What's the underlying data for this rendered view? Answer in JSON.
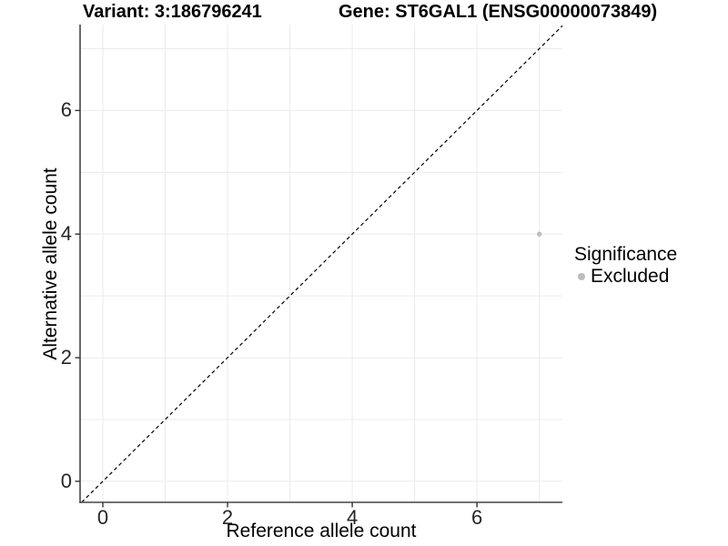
{
  "header": {
    "title_left": "Variant: 3:186796241",
    "title_right": "Gene: ST6GAL1 (ENSG00000073849)"
  },
  "chart_data": {
    "type": "scatter",
    "title_left": "Variant: 3:186796241",
    "title_right": "Gene: ST6GAL1 (ENSG00000073849)",
    "xlabel": "Reference allele count",
    "ylabel": "Alternative allele count",
    "xlim": [
      -0.365,
      7.37
    ],
    "ylim": [
      -0.34,
      7.39
    ],
    "x_ticks": [
      0,
      2,
      4,
      6
    ],
    "y_ticks": [
      0,
      2,
      4,
      6
    ],
    "gridlines_x": [
      0,
      1,
      2,
      3,
      4,
      5,
      6,
      7
    ],
    "gridlines_y": [
      0,
      1,
      2,
      3,
      4,
      5,
      6,
      7
    ],
    "grid": true,
    "grid_color": "#ebebeb",
    "axis_color": "#454545",
    "tick_color": "#333333",
    "points": [
      {
        "x": 7,
        "y": 4,
        "series": "Excluded"
      }
    ],
    "point_color": "#bdbdbd",
    "identity_line": {
      "slope": 1,
      "intercept": 0,
      "style": "dashed",
      "color": "#000000"
    },
    "legend": {
      "title": "Significance",
      "position": "right",
      "items": [
        {
          "label": "Excluded",
          "color": "#bdbdbd",
          "marker": "dot"
        }
      ]
    }
  }
}
